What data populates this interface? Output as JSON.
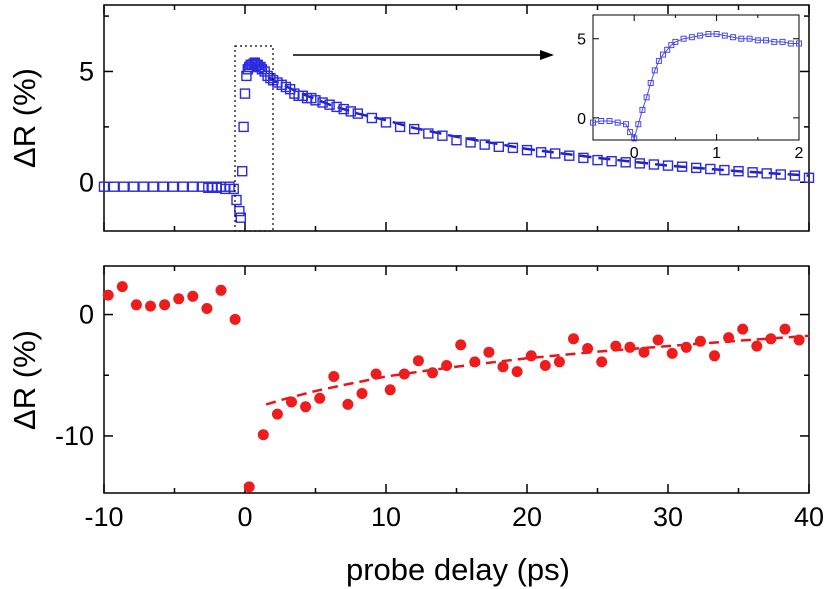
{
  "chart_data": [
    {
      "id": "top",
      "type": "scatter",
      "ylabel": "ΔR (%)",
      "xlim": [
        -10,
        40
      ],
      "ylim": [
        -2.2,
        8
      ],
      "yticks": [
        0,
        5
      ],
      "xticks": [
        -10,
        0,
        10,
        20,
        30,
        40
      ],
      "marker": "open-square",
      "color": "#2a2ae0",
      "series": [
        {
          "x": [
            -10,
            -9.3,
            -8.6,
            -7.9,
            -7.2,
            -6.5,
            -5.8,
            -5.1,
            -4.4,
            -3.7,
            -3.0,
            -2.6,
            -2.3,
            -2.0,
            -1.7,
            -1.4,
            -1.1,
            -0.8,
            -0.6,
            -0.4,
            -0.3,
            -0.2,
            -0.1,
            0.0,
            0.1,
            0.2,
            0.3,
            0.4,
            0.5,
            0.6,
            0.7,
            0.8,
            0.9,
            1.0,
            1.1,
            1.2,
            1.4,
            1.6,
            1.8,
            2.0,
            2.3,
            2.6,
            2.9,
            3.2,
            3.5,
            3.8,
            4.1,
            4.4,
            4.7,
            5.0,
            5.5,
            6.0,
            6.5,
            7.0,
            7.5,
            8,
            9,
            10,
            11,
            12,
            13,
            14,
            15,
            16,
            17,
            18,
            19,
            20,
            21,
            22,
            23,
            24,
            25,
            26,
            27,
            28,
            29,
            30,
            31,
            32,
            33,
            34,
            35,
            36,
            37,
            38,
            39,
            40
          ],
          "y": [
            -0.2,
            -0.2,
            -0.2,
            -0.2,
            -0.2,
            -0.2,
            -0.2,
            -0.2,
            -0.2,
            -0.2,
            -0.2,
            -0.25,
            -0.2,
            -0.25,
            -0.2,
            -0.3,
            -0.2,
            -0.3,
            -0.8,
            -1.3,
            -1.6,
            0.5,
            2.5,
            4.0,
            4.8,
            5.1,
            5.2,
            5.3,
            5.3,
            5.35,
            5.4,
            5.3,
            5.3,
            5.2,
            5.2,
            5.1,
            5.0,
            4.8,
            4.7,
            4.6,
            4.5,
            4.4,
            4.3,
            4.2,
            4.0,
            3.9,
            3.9,
            3.8,
            3.8,
            3.7,
            3.6,
            3.5,
            3.4,
            3.3,
            3.2,
            3.1,
            2.9,
            2.7,
            2.5,
            2.4,
            2.2,
            2.1,
            1.9,
            1.8,
            1.7,
            1.6,
            1.55,
            1.45,
            1.35,
            1.3,
            1.2,
            1.1,
            1.0,
            0.95,
            0.9,
            0.85,
            0.8,
            0.75,
            0.7,
            0.65,
            0.6,
            0.55,
            0.5,
            0.45,
            0.4,
            0.35,
            0.3,
            0.2
          ]
        },
        {
          "name": "fit",
          "style": "dashed",
          "x": [
            0.5,
            1,
            2,
            4,
            6,
            8,
            10,
            12,
            15,
            20,
            25,
            30,
            35,
            40
          ],
          "y": [
            5.2,
            5.0,
            4.6,
            4.0,
            3.5,
            3.1,
            2.8,
            2.45,
            2.05,
            1.5,
            1.1,
            0.75,
            0.5,
            0.3
          ]
        }
      ]
    },
    {
      "id": "inset",
      "type": "line",
      "xlim": [
        -0.5,
        2
      ],
      "ylim": [
        -1.4,
        6.5
      ],
      "xticks": [
        0,
        1,
        2
      ],
      "yticks": [
        0,
        5
      ],
      "marker": "open-square",
      "color": "#4a4ae6",
      "x": [
        -0.5,
        -0.4,
        -0.3,
        -0.2,
        -0.1,
        -0.05,
        0.0,
        0.05,
        0.1,
        0.15,
        0.2,
        0.25,
        0.3,
        0.35,
        0.4,
        0.45,
        0.5,
        0.6,
        0.7,
        0.8,
        0.9,
        1.0,
        1.1,
        1.2,
        1.3,
        1.4,
        1.5,
        1.6,
        1.7,
        1.8,
        1.9,
        2.0
      ],
      "y": [
        -0.3,
        -0.2,
        -0.2,
        -0.3,
        -0.4,
        -0.9,
        -1.3,
        -0.4,
        0.5,
        1.3,
        2.2,
        3.0,
        3.6,
        4.0,
        4.3,
        4.6,
        4.8,
        5.0,
        5.1,
        5.2,
        5.3,
        5.3,
        5.2,
        5.1,
        5.0,
        5.0,
        4.9,
        4.9,
        4.8,
        4.8,
        4.7,
        4.7
      ]
    },
    {
      "id": "bottom",
      "type": "scatter",
      "ylabel": "ΔR (%)",
      "xlabel": "probe delay (ps)",
      "xlim": [
        -10,
        40
      ],
      "ylim": [
        -14.7,
        4
      ],
      "yticks": [
        -10,
        0
      ],
      "xticks": [
        -10,
        0,
        10,
        20,
        30,
        40
      ],
      "xticklabels": [
        "-10",
        "0",
        "10",
        "20",
        "30",
        "40"
      ],
      "marker": "filled-circle",
      "color": "#ee1c1c",
      "series": [
        {
          "x": [
            -9.7,
            -8.7,
            -7.7,
            -6.7,
            -5.7,
            -4.7,
            -3.7,
            -2.7,
            -1.7,
            -0.7,
            0.3,
            1.3,
            2.3,
            3.3,
            4.3,
            5.3,
            6.3,
            7.3,
            8.3,
            9.3,
            10.3,
            11.3,
            12.3,
            13.3,
            14.3,
            15.3,
            16.3,
            17.3,
            18.3,
            19.3,
            20.3,
            21.3,
            22.3,
            23.3,
            24.3,
            25.3,
            26.3,
            27.3,
            28.3,
            29.3,
            30.3,
            31.3,
            32.3,
            33.3,
            34.3,
            35.3,
            36.3,
            37.3,
            38.3,
            39.3
          ],
          "y": [
            1.6,
            2.3,
            0.8,
            0.7,
            0.8,
            1.3,
            1.5,
            0.5,
            2.0,
            -0.4,
            -14.2,
            -9.9,
            -8.2,
            -7.2,
            -7.6,
            -6.9,
            -5.1,
            -7.4,
            -6.5,
            -4.9,
            -6.2,
            -4.9,
            -3.8,
            -4.8,
            -4.2,
            -2.5,
            -3.9,
            -3.1,
            -4.3,
            -4.7,
            -3.4,
            -4.2,
            -3.9,
            -2.0,
            -2.8,
            -3.9,
            -2.6,
            -2.7,
            -3.1,
            -2.1,
            -3.2,
            -2.7,
            -2.2,
            -3.4,
            -1.9,
            -1.2,
            -2.6,
            -2.0,
            -1.2,
            -2.1
          ]
        },
        {
          "name": "fit",
          "style": "dashed",
          "x": [
            1.5,
            3,
            5,
            7,
            10,
            13,
            16,
            20,
            25,
            30,
            35,
            40
          ],
          "y": [
            -7.4,
            -6.9,
            -6.3,
            -5.8,
            -5.1,
            -4.6,
            -4.15,
            -3.6,
            -3.05,
            -2.6,
            -2.15,
            -1.75
          ]
        }
      ]
    }
  ]
}
